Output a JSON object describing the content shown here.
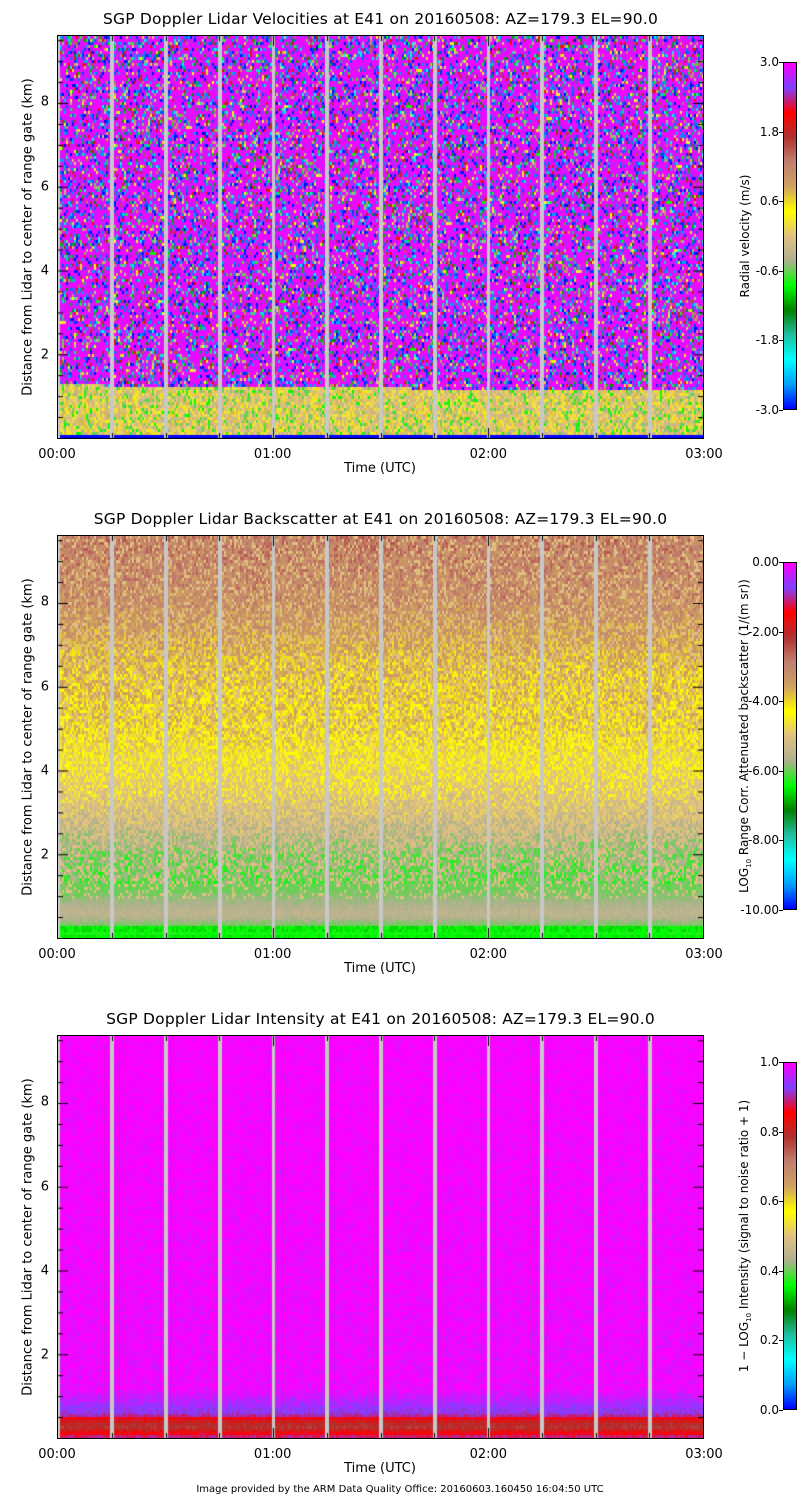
{
  "chart_data": [
    {
      "type": "heatmap",
      "title": "SGP Doppler Lidar Velocities at E41 on 20160508: AZ=179.3 EL=90.0",
      "xlabel": "Time (UTC)",
      "ylabel": "Distance from Lidar to center of range gate (km)",
      "x_ticks": [
        "00:00",
        "01:00",
        "02:00",
        "03:00"
      ],
      "x_range_hours": [
        0,
        3
      ],
      "y_ticks": [
        2,
        4,
        6,
        8
      ],
      "y_range_km": [
        0,
        9.6
      ],
      "colorbar": {
        "label": "Radial velocity (m/s)",
        "ticks": [
          "3.0",
          "1.8",
          "0.6",
          "-0.6",
          "-1.8",
          "-3.0"
        ],
        "range": [
          -3.0,
          3.0
        ]
      },
      "data_gaps_minutes": [
        0,
        15,
        30,
        45,
        60,
        75,
        90,
        105,
        120,
        135,
        150,
        165
      ],
      "layers": [
        {
          "name": "near-surface signal",
          "from_km": 0.0,
          "to_km": 1.3,
          "dominant_value": 0.0,
          "description": "tan/yellow/green, near-zero velocity"
        },
        {
          "name": "noise",
          "from_km": 1.3,
          "to_km": 9.6,
          "dominant_value": 3.0,
          "description": "random noise, mostly magenta"
        }
      ]
    },
    {
      "type": "heatmap",
      "title": "SGP Doppler Lidar Backscatter at E41 on 20160508: AZ=179.3 EL=90.0",
      "xlabel": "Time (UTC)",
      "ylabel": "Distance from Lidar to center of range gate (km)",
      "x_ticks": [
        "00:00",
        "01:00",
        "02:00",
        "03:00"
      ],
      "x_range_hours": [
        0,
        3
      ],
      "y_ticks": [
        2,
        4,
        6,
        8
      ],
      "y_range_km": [
        0,
        9.6
      ],
      "colorbar": {
        "label_prefix": "LOG",
        "label_sub": "10",
        "label_suffix": " Range Corr. Attenuated backscatter (1/(m sr))",
        "ticks": [
          "0.00",
          "-2.00",
          "-4.00",
          "-6.00",
          "-8.00",
          "-10.00"
        ],
        "range": [
          -10.0,
          0.0
        ]
      },
      "data_gaps_minutes": [
        0,
        15,
        30,
        45,
        60,
        75,
        90,
        105,
        120,
        135,
        150,
        165
      ],
      "profile": [
        {
          "km": 0.1,
          "value": -6.5
        },
        {
          "km": 0.2,
          "value": -6.2
        },
        {
          "km": 0.6,
          "value": -5.5
        },
        {
          "km": 1.2,
          "value": -6.0
        },
        {
          "km": 2.0,
          "value": -5.8
        },
        {
          "km": 3.5,
          "value": -4.8
        },
        {
          "km": 5.0,
          "value": -4.0
        },
        {
          "km": 6.5,
          "value": -3.8
        },
        {
          "km": 8.0,
          "value": -3.2
        },
        {
          "km": 9.6,
          "value": -2.9
        }
      ]
    },
    {
      "type": "heatmap",
      "title": "SGP Doppler Lidar Intensity at E41 on 20160508: AZ=179.3 EL=90.0",
      "xlabel": "Time (UTC)",
      "ylabel": "Distance from Lidar to center of range gate (km)",
      "x_ticks": [
        "00:00",
        "01:00",
        "02:00",
        "03:00"
      ],
      "x_range_hours": [
        0,
        3
      ],
      "y_ticks": [
        2,
        4,
        6,
        8
      ],
      "y_range_km": [
        0,
        9.6
      ],
      "colorbar": {
        "label_prefix": "1 − LOG",
        "label_sub": "10",
        "label_suffix": " Intensity (signal to noise ratio + 1)",
        "ticks": [
          "1.0",
          "0.8",
          "0.6",
          "0.4",
          "0.2",
          "0.0"
        ],
        "range": [
          0.0,
          1.0
        ]
      },
      "data_gaps_minutes": [
        0,
        15,
        30,
        45,
        60,
        75,
        90,
        105,
        120,
        135,
        150,
        165
      ],
      "profile": [
        {
          "km": 0.05,
          "value": 0.9
        },
        {
          "km": 0.15,
          "value": 0.85
        },
        {
          "km": 0.3,
          "value": 0.78
        },
        {
          "km": 0.45,
          "value": 0.82
        },
        {
          "km": 0.6,
          "value": 0.92
        },
        {
          "km": 0.9,
          "value": 0.96
        },
        {
          "km": 1.2,
          "value": 0.99
        },
        {
          "km": 9.6,
          "value": 1.0
        }
      ]
    }
  ],
  "colormap_stops": [
    "#0000ff",
    "#00a0ff",
    "#00ffff",
    "#20c0a0",
    "#008000",
    "#00ff00",
    "#b0b090",
    "#e0c080",
    "#ffff00",
    "#d0a060",
    "#c08070",
    "#b03030",
    "#ff0000",
    "#8040ff",
    "#ff00ff"
  ],
  "gap_color": "#c8c8c8",
  "footer": "Image provided by the ARM Data Quality Office: 20160603.160450 16:04:50 UTC"
}
